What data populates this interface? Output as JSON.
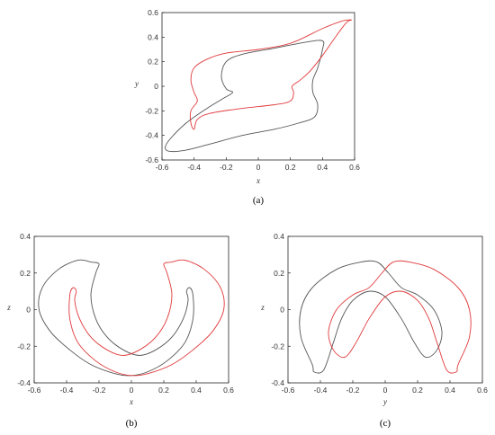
{
  "chart_data": [
    {
      "type": "line",
      "caption": "(a)",
      "xlabel": "x",
      "ylabel": "y",
      "xlim": [
        -0.6,
        0.6
      ],
      "ylim": [
        -0.6,
        0.6
      ],
      "xticks": [
        "-0.6",
        "-0.4",
        "-0.2",
        "0",
        "0.2",
        "0.4",
        "0.6"
      ],
      "yticks": [
        "-0.6",
        "-0.4",
        "-0.2",
        "0",
        "0.2",
        "0.4",
        "0.6"
      ],
      "grid": false,
      "series": [
        {
          "color": "#555555",
          "closed": true,
          "points": [
            [
              -0.55,
              -0.53
            ],
            [
              -0.45,
              -0.52
            ],
            [
              -0.3,
              -0.47
            ],
            [
              -0.1,
              -0.4
            ],
            [
              0.1,
              -0.35
            ],
            [
              0.25,
              -0.3
            ],
            [
              0.35,
              -0.25
            ],
            [
              0.37,
              -0.15
            ],
            [
              0.34,
              -0.05
            ],
            [
              0.34,
              0.05
            ],
            [
              0.37,
              0.15
            ],
            [
              0.4,
              0.3
            ],
            [
              0.4,
              0.37
            ],
            [
              0.3,
              0.36
            ],
            [
              0.1,
              0.31
            ],
            [
              -0.1,
              0.26
            ],
            [
              -0.2,
              0.2
            ],
            [
              -0.23,
              0.08
            ],
            [
              -0.2,
              -0.02
            ],
            [
              -0.16,
              -0.05
            ],
            [
              -0.22,
              -0.1
            ],
            [
              -0.32,
              -0.18
            ],
            [
              -0.45,
              -0.3
            ],
            [
              -0.55,
              -0.43
            ],
            [
              -0.58,
              -0.5
            ]
          ]
        },
        {
          "color": "#e0393b",
          "closed": true,
          "points": [
            [
              -0.4,
              -0.35
            ],
            [
              -0.38,
              -0.27
            ],
            [
              -0.3,
              -0.22
            ],
            [
              -0.1,
              -0.18
            ],
            [
              0.1,
              -0.15
            ],
            [
              0.2,
              -0.12
            ],
            [
              0.22,
              -0.05
            ],
            [
              0.21,
              0.0
            ],
            [
              0.26,
              0.05
            ],
            [
              0.32,
              0.12
            ],
            [
              0.4,
              0.25
            ],
            [
              0.48,
              0.4
            ],
            [
              0.55,
              0.52
            ],
            [
              0.58,
              0.54
            ],
            [
              0.52,
              0.53
            ],
            [
              0.4,
              0.47
            ],
            [
              0.2,
              0.35
            ],
            [
              0.0,
              0.3
            ],
            [
              -0.2,
              0.27
            ],
            [
              -0.32,
              0.22
            ],
            [
              -0.4,
              0.15
            ],
            [
              -0.42,
              0.05
            ],
            [
              -0.4,
              -0.05
            ],
            [
              -0.38,
              -0.12
            ],
            [
              -0.42,
              -0.2
            ],
            [
              -0.42,
              -0.3
            ]
          ]
        }
      ]
    },
    {
      "type": "line",
      "caption": "(b)",
      "xlabel": "x",
      "ylabel": "z",
      "xlim": [
        -0.6,
        0.6
      ],
      "ylim": [
        -0.4,
        0.4
      ],
      "xticks": [
        "-0.6",
        "-0.4",
        "-0.2",
        "0",
        "0.2",
        "0.4",
        "0.6"
      ],
      "yticks": [
        "-0.4",
        "-0.2",
        "0",
        "0.2",
        "0.4"
      ],
      "grid": false,
      "series": [
        {
          "color": "#555555",
          "closed": true,
          "points": [
            [
              -0.2,
              0.25
            ],
            [
              -0.22,
              0.2
            ],
            [
              -0.25,
              0.08
            ],
            [
              -0.22,
              -0.05
            ],
            [
              -0.15,
              -0.15
            ],
            [
              -0.05,
              -0.22
            ],
            [
              0.05,
              -0.25
            ],
            [
              0.15,
              -0.22
            ],
            [
              0.25,
              -0.15
            ],
            [
              0.32,
              -0.05
            ],
            [
              0.35,
              0.05
            ],
            [
              0.34,
              0.1
            ],
            [
              0.36,
              0.12
            ],
            [
              0.38,
              0.08
            ],
            [
              0.38,
              -0.05
            ],
            [
              0.33,
              -0.18
            ],
            [
              0.22,
              -0.28
            ],
            [
              0.1,
              -0.34
            ],
            [
              0.0,
              -0.36
            ],
            [
              -0.1,
              -0.35
            ],
            [
              -0.25,
              -0.3
            ],
            [
              -0.38,
              -0.22
            ],
            [
              -0.5,
              -0.12
            ],
            [
              -0.57,
              0.0
            ],
            [
              -0.55,
              0.12
            ],
            [
              -0.45,
              0.22
            ],
            [
              -0.33,
              0.27
            ],
            [
              -0.25,
              0.26
            ]
          ]
        },
        {
          "color": "#e0393b",
          "closed": true,
          "points": [
            [
              0.2,
              0.25
            ],
            [
              0.22,
              0.2
            ],
            [
              0.25,
              0.08
            ],
            [
              0.22,
              -0.05
            ],
            [
              0.15,
              -0.15
            ],
            [
              0.05,
              -0.22
            ],
            [
              -0.05,
              -0.25
            ],
            [
              -0.15,
              -0.22
            ],
            [
              -0.25,
              -0.15
            ],
            [
              -0.32,
              -0.05
            ],
            [
              -0.35,
              0.05
            ],
            [
              -0.34,
              0.1
            ],
            [
              -0.36,
              0.12
            ],
            [
              -0.38,
              0.08
            ],
            [
              -0.38,
              -0.05
            ],
            [
              -0.33,
              -0.18
            ],
            [
              -0.22,
              -0.28
            ],
            [
              -0.1,
              -0.34
            ],
            [
              0.0,
              -0.36
            ],
            [
              0.1,
              -0.35
            ],
            [
              0.25,
              -0.3
            ],
            [
              0.38,
              -0.22
            ],
            [
              0.5,
              -0.12
            ],
            [
              0.57,
              0.0
            ],
            [
              0.55,
              0.12
            ],
            [
              0.45,
              0.22
            ],
            [
              0.33,
              0.27
            ],
            [
              0.25,
              0.26
            ]
          ]
        }
      ]
    },
    {
      "type": "line",
      "caption": "(c)",
      "xlabel": "y",
      "ylabel": "z",
      "xlim": [
        -0.6,
        0.6
      ],
      "ylim": [
        -0.4,
        0.4
      ],
      "xticks": [
        "-0.6",
        "-0.4",
        "-0.2",
        "0",
        "0.2",
        "0.4",
        "0.6"
      ],
      "yticks": [
        "-0.4",
        "-0.2",
        "0",
        "0.2",
        "0.4"
      ],
      "grid": false,
      "series": [
        {
          "color": "#555555",
          "closed": true,
          "points": [
            [
              -0.45,
              -0.3
            ],
            [
              -0.52,
              -0.15
            ],
            [
              -0.52,
              0.0
            ],
            [
              -0.45,
              0.12
            ],
            [
              -0.3,
              0.22
            ],
            [
              -0.15,
              0.26
            ],
            [
              -0.05,
              0.26
            ],
            [
              0.02,
              0.2
            ],
            [
              0.1,
              0.12
            ],
            [
              0.2,
              0.08
            ],
            [
              0.3,
              0.0
            ],
            [
              0.35,
              -0.12
            ],
            [
              0.32,
              -0.22
            ],
            [
              0.25,
              -0.26
            ],
            [
              0.18,
              -0.18
            ],
            [
              0.1,
              -0.05
            ],
            [
              0.0,
              0.07
            ],
            [
              -0.1,
              0.1
            ],
            [
              -0.2,
              0.05
            ],
            [
              -0.27,
              -0.05
            ],
            [
              -0.32,
              -0.18
            ],
            [
              -0.38,
              -0.33
            ],
            [
              -0.44,
              -0.34
            ]
          ]
        },
        {
          "color": "#e0393b",
          "closed": true,
          "points": [
            [
              0.45,
              -0.3
            ],
            [
              0.52,
              -0.15
            ],
            [
              0.52,
              0.0
            ],
            [
              0.45,
              0.12
            ],
            [
              0.3,
              0.22
            ],
            [
              0.15,
              0.26
            ],
            [
              0.05,
              0.26
            ],
            [
              -0.02,
              0.2
            ],
            [
              -0.1,
              0.12
            ],
            [
              -0.2,
              0.08
            ],
            [
              -0.3,
              0.0
            ],
            [
              -0.35,
              -0.12
            ],
            [
              -0.32,
              -0.22
            ],
            [
              -0.25,
              -0.26
            ],
            [
              -0.18,
              -0.18
            ],
            [
              -0.1,
              -0.05
            ],
            [
              0.0,
              0.07
            ],
            [
              0.1,
              0.1
            ],
            [
              0.2,
              0.05
            ],
            [
              0.27,
              -0.05
            ],
            [
              0.32,
              -0.18
            ],
            [
              0.38,
              -0.33
            ],
            [
              0.44,
              -0.34
            ]
          ]
        }
      ]
    }
  ]
}
